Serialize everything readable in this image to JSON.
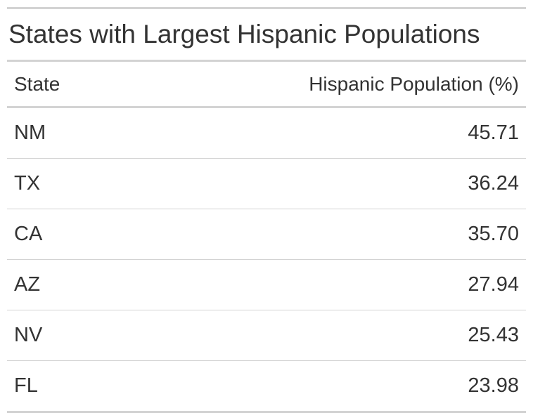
{
  "chart_data": {
    "type": "table",
    "title": "States with Largest Hispanic Populations",
    "columns": [
      "State",
      "Hispanic Population (%)"
    ],
    "rows": [
      {
        "state": "NM",
        "value": "45.71"
      },
      {
        "state": "TX",
        "value": "36.24"
      },
      {
        "state": "CA",
        "value": "35.70"
      },
      {
        "state": "AZ",
        "value": "27.94"
      },
      {
        "state": "NV",
        "value": "25.43"
      },
      {
        "state": "FL",
        "value": "23.98"
      }
    ]
  }
}
